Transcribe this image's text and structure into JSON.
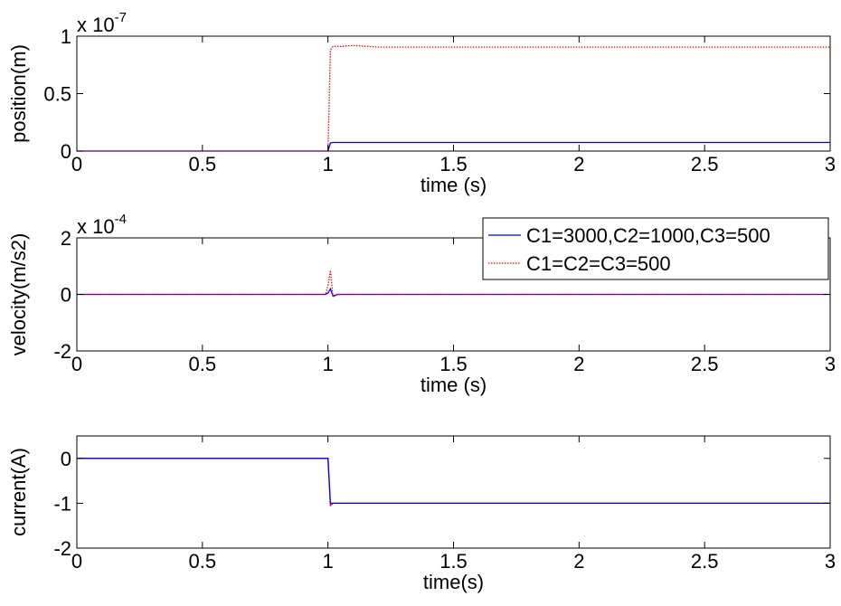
{
  "chart_data": [
    {
      "type": "line",
      "title": "",
      "xlabel": "time (s)",
      "ylabel": "position(m)",
      "exponent_label": "x 10",
      "exponent_power": "-7",
      "xlim": [
        0,
        3
      ],
      "ylim": [
        0,
        1
      ],
      "x_ticks": [
        "0",
        "0.5",
        "1",
        "1.5",
        "2",
        "2.5",
        "3"
      ],
      "y_ticks": [
        "0",
        "0.5",
        "1"
      ],
      "y_tick_values": [
        0,
        0.5,
        1
      ],
      "grid": false,
      "series": [
        {
          "color": "#0000ff",
          "dash": "solid",
          "x": [
            0,
            1.0,
            1.01,
            1.02,
            3
          ],
          "y": [
            0,
            0,
            0.07,
            0.075,
            0.075
          ]
        },
        {
          "color": "#ff0000",
          "dash": "dotted",
          "x": [
            0,
            1.0,
            1.01,
            1.02,
            1.05,
            1.1,
            1.2,
            3
          ],
          "y": [
            0,
            0,
            0.88,
            0.91,
            0.91,
            0.92,
            0.905,
            0.905
          ]
        }
      ]
    },
    {
      "type": "line",
      "title": "",
      "xlabel": "time (s)",
      "ylabel": "velocity(m/s2)",
      "exponent_label": "x 10",
      "exponent_power": "-4",
      "xlim": [
        0,
        3
      ],
      "ylim": [
        -2,
        2
      ],
      "x_ticks": [
        "0",
        "0.5",
        "1",
        "1.5",
        "2",
        "2.5",
        "3"
      ],
      "y_ticks": [
        "-2",
        "0",
        "2"
      ],
      "y_tick_values": [
        -2,
        0,
        2
      ],
      "grid": false,
      "legend": "top-right",
      "series": [
        {
          "name": "C1=3000,C2=1000,C3=500",
          "color": "#0000ff",
          "dash": "solid",
          "x": [
            0,
            0.99,
            1.0,
            1.01,
            1.02,
            1.04,
            3
          ],
          "y": [
            0,
            0,
            0.05,
            0.2,
            -0.05,
            0,
            0
          ]
        },
        {
          "name": "C1=C2=C3=500",
          "color": "#ff0000",
          "dash": "dotted",
          "x": [
            0,
            0.99,
            1.0,
            1.01,
            1.02,
            1.04,
            3
          ],
          "y": [
            0,
            0,
            0.3,
            0.85,
            -0.1,
            0,
            0
          ]
        }
      ]
    },
    {
      "type": "line",
      "title": "",
      "xlabel": "time(s)",
      "ylabel": "current(A)",
      "xlim": [
        0,
        3
      ],
      "ylim": [
        -2,
        0.5
      ],
      "x_ticks": [
        "0",
        "0.5",
        "1",
        "1.5",
        "2",
        "2.5",
        "3"
      ],
      "y_ticks": [
        "-2",
        "-1",
        "0"
      ],
      "y_tick_values": [
        -2,
        -1,
        0
      ],
      "grid": false,
      "series": [
        {
          "color": "#ff0000",
          "dash": "solid",
          "x": [
            0,
            1.0,
            1.01,
            1.02,
            1.03,
            3
          ],
          "y": [
            0,
            0,
            -1.05,
            -1.0,
            -1.0,
            -1.0
          ]
        },
        {
          "color": "#0000ff",
          "dash": "solid",
          "x": [
            0,
            1.0,
            1.01,
            1.02,
            3
          ],
          "y": [
            0,
            0,
            -1.0,
            -1.0,
            -1.0
          ]
        }
      ]
    }
  ]
}
